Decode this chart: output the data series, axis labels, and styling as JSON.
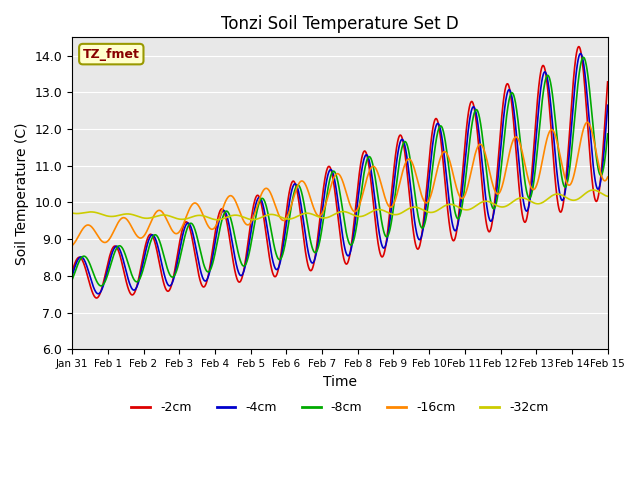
{
  "title": "Tonzi Soil Temperature Set D",
  "xlabel": "Time",
  "ylabel": "Soil Temperature (C)",
  "ylim": [
    6.0,
    14.5
  ],
  "yticks": [
    6.0,
    7.0,
    8.0,
    9.0,
    10.0,
    11.0,
    12.0,
    13.0,
    14.0
  ],
  "bg_color": "#e8e8e8",
  "annotation_text": "TZ_fmet",
  "annotation_bg": "#ffffcc",
  "annotation_border": "#999900",
  "annotation_text_color": "#880000",
  "colors": {
    "-2cm": "#dd0000",
    "-4cm": "#0000cc",
    "-8cm": "#00aa00",
    "-16cm": "#ff8800",
    "-32cm": "#cccc00"
  },
  "linewidth": 1.2,
  "x_start_day": 0,
  "x_end_day": 15,
  "xtick_labels": [
    "Jan 31",
    "Feb 1",
    "Feb 2",
    "Feb 3",
    "Feb 4",
    "Feb 5",
    "Feb 6",
    "Feb 7",
    "Feb 8",
    "Feb 9",
    "Feb 10",
    "Feb 11",
    "Feb 12",
    "Feb 13",
    "Feb 14",
    "Feb 15"
  ],
  "xtick_positions": [
    0,
    1,
    2,
    3,
    4,
    5,
    6,
    7,
    8,
    9,
    10,
    11,
    12,
    13,
    14,
    15
  ]
}
